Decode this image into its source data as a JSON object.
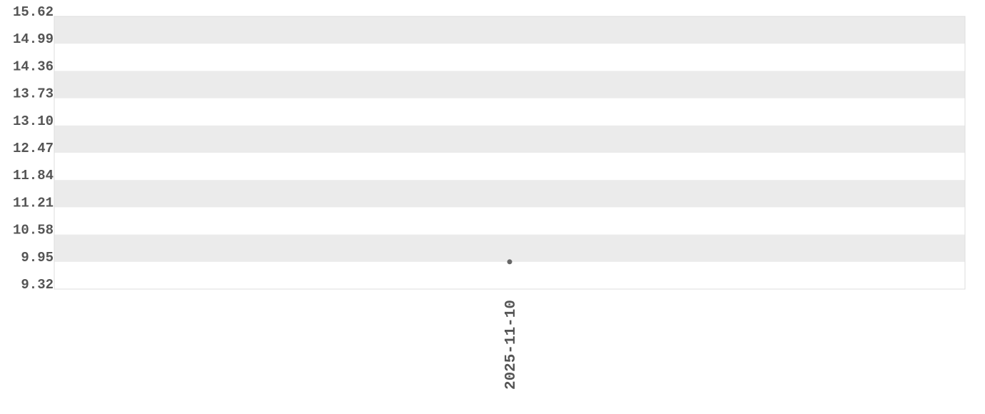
{
  "chart_data": {
    "type": "scatter",
    "title": "",
    "xlabel": "",
    "ylabel": "",
    "ylim": [
      9.32,
      15.62
    ],
    "yticks": [
      "15.62",
      "14.99",
      "14.36",
      "13.73",
      "13.10",
      "12.47",
      "11.84",
      "11.21",
      "10.58",
      "9.95",
      "9.32"
    ],
    "categories": [
      "2025-11-10"
    ],
    "points": [
      {
        "x": "2025-11-10",
        "y": 9.95
      }
    ],
    "grid": "alternating horizontal bands",
    "colors": {
      "band": "#ebebeb",
      "point": "#666666",
      "text": "#555555",
      "border": "#dddddd"
    }
  }
}
